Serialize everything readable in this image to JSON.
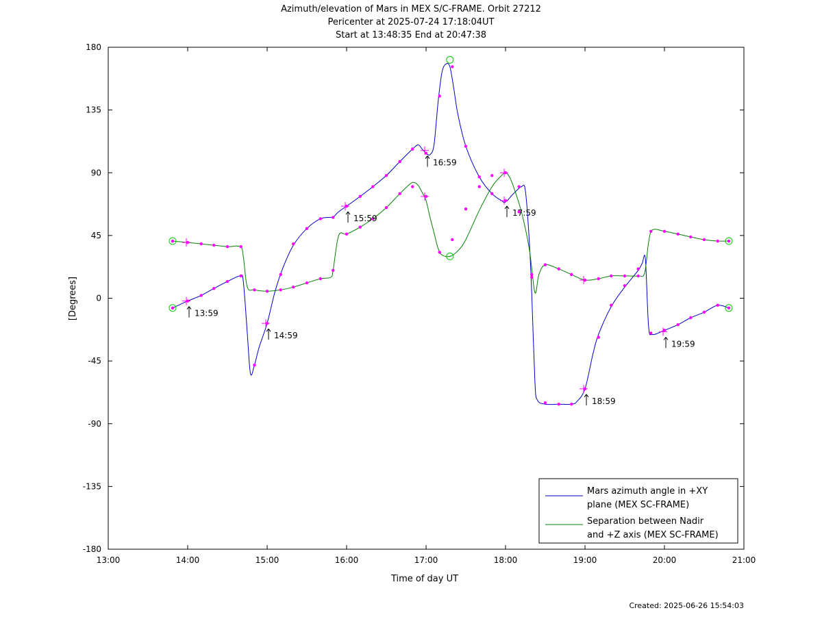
{
  "chart_data": {
    "type": "line",
    "title_lines": [
      "Azimuth/elevation of Mars in MEX S/C-FRAME.  Orbit 27212",
      "Pericenter at 2025-07-24 17:18:04UT",
      "Start at 13:48:35 End at 20:47:38"
    ],
    "xlabel": "Time of day UT",
    "ylabel": "[Degrees]",
    "xlim": [
      13.0,
      21.0
    ],
    "ylim": [
      -180,
      180
    ],
    "x_ticks": [
      13,
      14,
      15,
      16,
      17,
      18,
      19,
      20,
      21
    ],
    "x_tick_labels": [
      "13:00",
      "14:00",
      "15:00",
      "16:00",
      "17:00",
      "18:00",
      "19:00",
      "20:00",
      "21:00"
    ],
    "y_ticks": [
      180,
      135,
      90,
      45,
      0,
      -45,
      -90,
      -135,
      -180
    ],
    "y_tick_labels": [
      "180",
      "135",
      "90",
      "45",
      "0",
      "-45",
      "-90",
      "-135",
      "-180"
    ],
    "grid": false,
    "legend_position": "bottom-right",
    "series": [
      {
        "name_lines": [
          "Mars azimuth angle in +XY",
          "plane (MEX SC-FRAME)"
        ],
        "color": "#0000cc",
        "x": [
          13.81,
          14.0,
          14.17,
          14.33,
          14.5,
          14.66,
          14.7,
          14.75,
          14.79,
          14.84,
          14.9,
          15.0,
          15.1,
          15.2,
          15.33,
          15.5,
          15.67,
          15.8,
          15.83,
          15.9,
          16.0,
          16.17,
          16.33,
          16.5,
          16.67,
          16.83,
          16.9,
          16.95,
          17.0,
          17.05,
          17.1,
          17.15,
          17.2,
          17.25,
          17.3,
          17.35,
          17.4,
          17.5,
          17.67,
          17.83,
          17.95,
          18.0,
          18.1,
          18.2,
          18.25,
          18.3,
          18.33,
          18.37,
          18.4,
          18.5,
          18.67,
          18.83,
          18.9,
          19.0,
          19.1,
          19.17,
          19.33,
          19.5,
          19.67,
          19.72,
          19.76,
          19.8,
          19.85,
          20.0,
          20.17,
          20.33,
          20.5,
          20.67,
          20.81
        ],
        "y": [
          -7,
          -2,
          2,
          7,
          12,
          16,
          12,
          -25,
          -54,
          -48,
          -35,
          -18,
          5,
          22,
          38,
          50,
          57,
          58,
          58,
          62,
          66,
          73,
          80,
          88,
          98,
          107,
          110,
          107,
          104,
          103,
          110,
          140,
          162,
          168,
          166,
          150,
          132,
          109,
          87,
          75,
          70,
          69,
          75,
          80,
          77,
          40,
          3,
          -60,
          -73,
          -76,
          -76,
          -76,
          -74,
          -65,
          -40,
          -26,
          -6,
          8,
          20,
          25,
          28,
          -20,
          -26,
          -23,
          -19,
          -14,
          -10,
          -5,
          -7
        ],
        "markers_x": [
          13.81,
          14.0,
          14.17,
          14.33,
          14.5,
          14.67,
          14.84,
          15.0,
          15.17,
          15.33,
          15.5,
          15.67,
          15.83,
          16.0,
          16.17,
          16.33,
          16.5,
          16.67,
          16.83,
          17.0,
          17.17,
          17.33,
          17.5,
          17.67,
          17.83,
          18.0,
          18.17,
          18.33,
          18.5,
          18.67,
          18.83,
          19.0,
          19.17,
          19.33,
          19.5,
          19.67,
          19.83,
          20.0,
          20.17,
          20.33,
          20.5,
          20.67,
          20.81
        ],
        "markers_y": [
          -7,
          -2,
          2,
          7,
          12,
          16,
          -48,
          -18,
          17,
          39,
          50,
          57,
          58,
          66,
          73,
          80,
          88,
          98,
          107,
          104,
          145,
          166,
          109,
          87,
          75,
          70,
          80,
          15,
          -75,
          -76,
          -76,
          -65,
          -28,
          -5,
          9,
          21,
          -25,
          -23,
          -19,
          -14,
          -10,
          -5,
          -7
        ]
      },
      {
        "name_lines": [
          "Separation between Nadir",
          "and +Z axis (MEX SC-FRAME)"
        ],
        "color": "#008000",
        "x": [
          13.81,
          14.0,
          14.17,
          14.33,
          14.5,
          14.66,
          14.7,
          14.75,
          14.84,
          15.0,
          15.17,
          15.33,
          15.5,
          15.67,
          15.8,
          15.83,
          15.9,
          16.0,
          16.17,
          16.33,
          16.5,
          16.67,
          16.8,
          16.85,
          16.9,
          16.95,
          17.0,
          17.05,
          17.1,
          17.15,
          17.2,
          17.3,
          17.4,
          17.5,
          17.67,
          17.83,
          17.95,
          18.0,
          18.05,
          18.1,
          18.2,
          18.3,
          18.37,
          18.42,
          18.5,
          18.67,
          18.83,
          19.0,
          19.17,
          19.33,
          19.5,
          19.67,
          19.75,
          19.8,
          19.85,
          20.0,
          20.17,
          20.33,
          20.5,
          20.67,
          20.81
        ],
        "y": [
          41,
          40,
          39,
          38,
          37,
          37,
          30,
          8,
          6,
          5,
          6,
          8,
          11,
          14,
          15,
          20,
          45,
          46,
          51,
          57,
          65,
          75,
          82,
          83,
          81,
          76,
          70,
          58,
          47,
          36,
          31,
          30,
          34,
          42,
          63,
          80,
          88,
          90,
          87,
          80,
          62,
          35,
          4,
          17,
          24,
          21,
          17,
          13,
          14,
          16,
          16,
          16,
          18,
          40,
          49,
          48,
          46,
          44,
          42,
          41,
          41
        ],
        "markers_x": [
          13.81,
          14.0,
          14.17,
          14.33,
          14.5,
          14.67,
          14.84,
          15.0,
          15.17,
          15.33,
          15.5,
          15.67,
          15.83,
          16.0,
          16.17,
          16.33,
          16.5,
          16.67,
          16.83,
          17.0,
          17.17,
          17.33,
          17.5,
          17.67,
          17.83,
          18.0,
          18.17,
          18.33,
          18.5,
          18.67,
          18.83,
          19.0,
          19.17,
          19.33,
          19.5,
          19.67,
          19.83,
          20.0,
          20.17,
          20.33,
          20.5,
          20.67,
          20.81
        ],
        "markers_y": [
          41,
          40,
          39,
          38,
          37,
          37,
          6,
          5,
          6,
          8,
          11,
          14,
          20,
          46,
          51,
          57,
          65,
          75,
          80,
          73,
          33,
          42,
          64,
          80,
          88,
          90,
          62,
          17,
          24,
          21,
          17,
          13,
          14,
          16,
          16,
          16,
          48,
          48,
          46,
          44,
          42,
          41,
          41
        ]
      }
    ],
    "hour_markers": [
      {
        "label": "13:59",
        "x": 13.983,
        "y": -2
      },
      {
        "label": "14:59",
        "x": 14.983,
        "y": -18
      },
      {
        "label": "15:59",
        "x": 15.983,
        "y": 66
      },
      {
        "label": "16:59",
        "x": 16.983,
        "y": 106
      },
      {
        "label": "17:59",
        "x": 17.983,
        "y": 70
      },
      {
        "label": "18:59",
        "x": 18.983,
        "y": -65
      },
      {
        "label": "19:59",
        "x": 19.983,
        "y": -24
      }
    ],
    "extra_plus_markers": [
      {
        "x": 13.983,
        "y": 40
      },
      {
        "x": 16.983,
        "y": 73
      },
      {
        "x": 17.983,
        "y": 90
      },
      {
        "x": 18.983,
        "y": 13
      }
    ],
    "circle_markers": [
      {
        "x": 13.81,
        "y": 41
      },
      {
        "x": 13.81,
        "y": -7
      },
      {
        "x": 17.3,
        "y": 171
      },
      {
        "x": 17.3,
        "y": 30
      },
      {
        "x": 20.81,
        "y": 41
      },
      {
        "x": 20.81,
        "y": -7
      }
    ],
    "marker_color": "#ff00ff",
    "circle_color": "#00cc00"
  },
  "footer": {
    "created": "Created: 2025-06-26 15:54:03"
  }
}
